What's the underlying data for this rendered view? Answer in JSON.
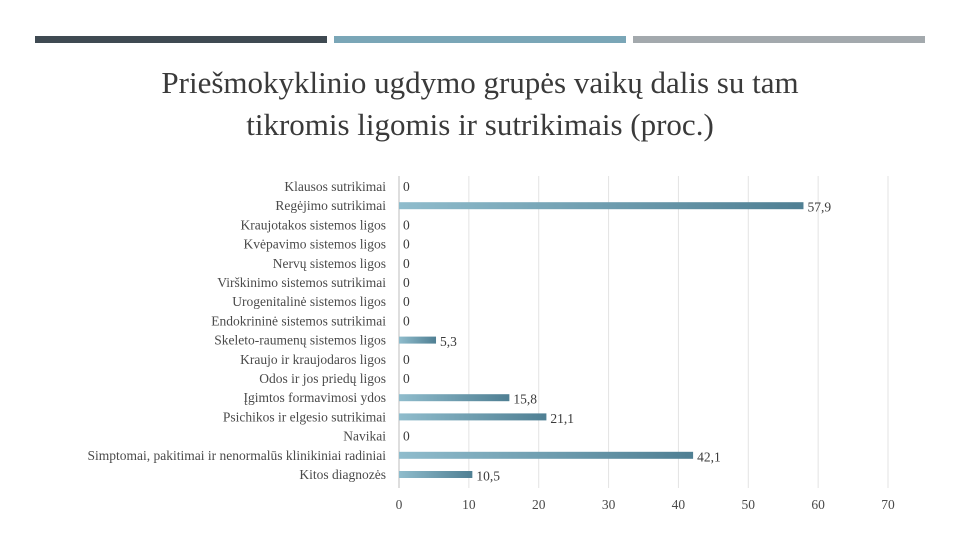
{
  "slide": {
    "title_line1": "Priešmokyklinio ugdymo grupės vaikų dalis su tam",
    "title_line2": "tikromis ligomis ir sutrikimais (proc.)",
    "accent_colors": [
      "#3f4a52",
      "#7aa6b7",
      "#a3a9ad"
    ]
  },
  "chart_data": {
    "type": "bar",
    "orientation": "horizontal",
    "categories": [
      "Klausos sutrikimai",
      "Regėjimo sutrikimai",
      "Kraujotakos sistemos ligos",
      "Kvėpavimo sistemos ligos",
      "Nervų sistemos ligos",
      "Virškinimo sistemos sutrikimai",
      "Urogenitalinė sistemos ligos",
      "Endokrininė sistemos sutrikimai",
      "Skeleto-raumenų sistemos ligos",
      "Kraujo ir kraujodaros ligos",
      "Odos ir jos priedų ligos",
      "Įgimtos formavimosi ydos",
      "Psichikos ir elgesio sutrikimai",
      "Navikai",
      "Simptomai, pakitimai ir nenormalūs klinikiniai radiniai",
      "Kitos diagnozės"
    ],
    "values": [
      0,
      57.9,
      0,
      0,
      0,
      0,
      0,
      0,
      5.3,
      0,
      0,
      15.8,
      21.1,
      0,
      42.1,
      10.5
    ],
    "value_labels": [
      "0",
      "57,9",
      "0",
      "0",
      "0",
      "0",
      "0",
      "0",
      "5,3",
      "0",
      "0",
      "15,8",
      "21,1",
      "0",
      "42,1",
      "10,5"
    ],
    "xlim": [
      0,
      70
    ],
    "xticks": [
      0,
      10,
      20,
      30,
      40,
      50,
      60,
      70
    ],
    "grid": true,
    "bar_color": "#6e9fb1",
    "grid_color": "#e3e3e3"
  }
}
